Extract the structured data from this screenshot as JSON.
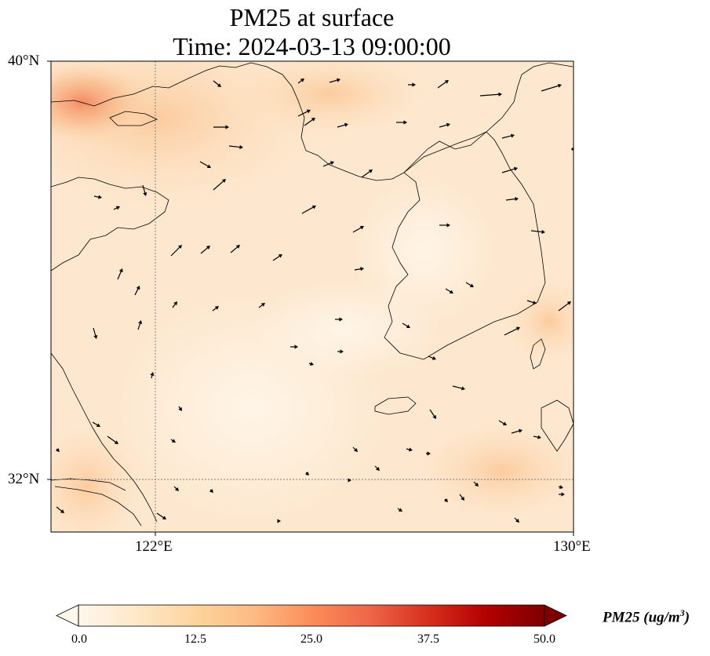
{
  "title": {
    "line1": "PM25 at surface",
    "line2": "Time: 2024-03-13 09:00:00"
  },
  "map": {
    "lon_range": [
      120,
      130
    ],
    "lat_range": [
      31,
      40
    ],
    "lat_ticks": [
      {
        "value": 40,
        "label": "40°N"
      },
      {
        "value": 32,
        "label": "32°N"
      }
    ],
    "lon_ticks": [
      {
        "value": 122,
        "label": "122°E"
      },
      {
        "value": 130,
        "label": "130°E"
      }
    ],
    "gridlines": "dotted",
    "field": "PM25",
    "units": "ug/m3",
    "wind_vectors": true
  },
  "colorbar": {
    "label": "PM25 (ug/m",
    "label_sup": "3",
    "label_close": ")",
    "min": 0.0,
    "max": 50.0,
    "ticks": [
      "0.0",
      "12.5",
      "25.0",
      "37.5",
      "50.0"
    ],
    "colormap": "OrRd",
    "colors": [
      "#fff7ec",
      "#fee8c8",
      "#fdd49e",
      "#fdbb84",
      "#fc8d59",
      "#ef6548",
      "#d7301f",
      "#b30000",
      "#7f0000"
    ],
    "extend": "both"
  }
}
